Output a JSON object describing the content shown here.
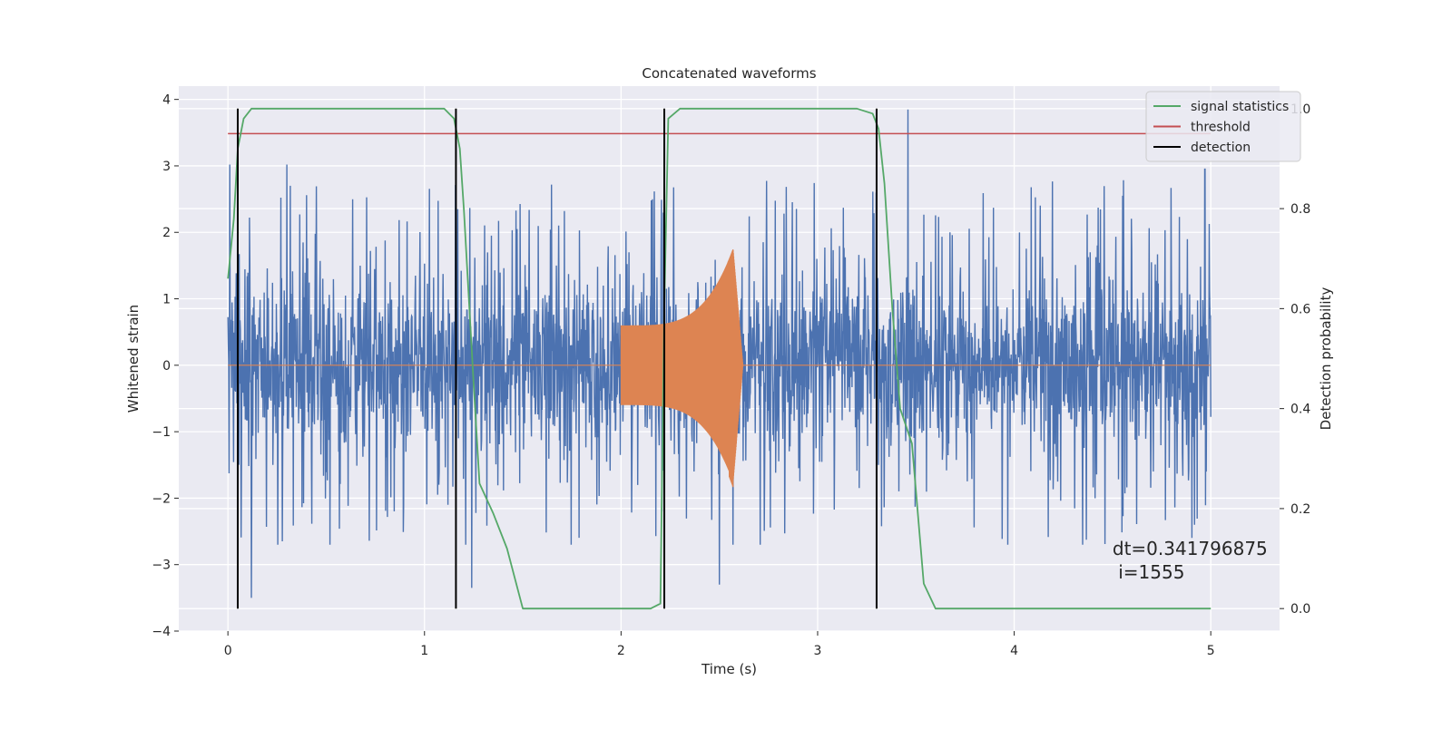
{
  "chart_data": {
    "type": "line",
    "title": "Concatenated waveforms",
    "xlabel": "Time (s)",
    "ylabel": "Whitened strain",
    "y2label": "Detection probability",
    "xlim": [
      -0.25,
      5.35
    ],
    "ylim": [
      -4,
      4.2
    ],
    "y2lim": [
      -0.045,
      1.045
    ],
    "xticks": [
      0,
      1,
      2,
      3,
      4,
      5
    ],
    "xtick_labels": [
      "0",
      "1",
      "2",
      "3",
      "4",
      "5"
    ],
    "yticks": [
      -4,
      -3,
      -2,
      -1,
      0,
      1,
      2,
      3,
      4
    ],
    "ytick_labels": [
      "−4",
      "−3",
      "−2",
      "−1",
      "0",
      "1",
      "2",
      "3",
      "4"
    ],
    "y2ticks": [
      0.0,
      0.2,
      0.4,
      0.6,
      0.8,
      1.0
    ],
    "y2tick_labels": [
      "0.0",
      "0.2",
      "0.4",
      "0.6",
      "0.8",
      "1.0"
    ],
    "grid": true,
    "legend_position": "top-right",
    "series": [
      {
        "name": "whitened strain",
        "axis": "left",
        "color": "#4c72b0",
        "kind": "noise",
        "x_range": [
          0,
          5
        ],
        "typical_envelope": 1.0,
        "peak_values": [
          {
            "x": 0.01,
            "y": 3.02
          },
          {
            "x": 0.3,
            "y": 3.02
          },
          {
            "x": 1.17,
            "y": 2.35
          },
          {
            "x": 1.24,
            "y": -3.35
          },
          {
            "x": 1.16,
            "y": -3.65
          },
          {
            "x": 2.5,
            "y": -3.3
          },
          {
            "x": 3.46,
            "y": 3.85
          },
          {
            "x": 4.97,
            "y": 2.95
          },
          {
            "x": 0.12,
            "y": -3.5
          }
        ]
      },
      {
        "name": "injected waveform",
        "axis": "left",
        "color": "#dd8452",
        "kind": "chirp",
        "start": 2.0,
        "peak_time": 2.57,
        "end": 2.62,
        "amplitude_start": 0.6,
        "amplitude_peak": 1.75,
        "amplitude_min_peak": -1.85
      },
      {
        "name": "signal statistics",
        "axis": "right",
        "color": "#55a868",
        "x": [
          0.0,
          0.03,
          0.05,
          0.08,
          0.12,
          0.2,
          1.0,
          1.1,
          1.15,
          1.18,
          1.2,
          1.25,
          1.28,
          1.35,
          1.42,
          1.5,
          2.15,
          2.2,
          2.22,
          2.24,
          2.3,
          3.2,
          3.28,
          3.31,
          3.34,
          3.38,
          3.42,
          3.48,
          3.54,
          3.6,
          5.0
        ],
        "y": [
          0.66,
          0.78,
          0.92,
          0.98,
          1.0,
          1.0,
          1.0,
          1.0,
          0.98,
          0.92,
          0.8,
          0.45,
          0.25,
          0.19,
          0.12,
          0.0,
          0.0,
          0.01,
          0.6,
          0.98,
          1.0,
          1.0,
          0.99,
          0.96,
          0.85,
          0.6,
          0.4,
          0.33,
          0.05,
          0.0,
          0.0
        ]
      },
      {
        "name": "threshold",
        "axis": "right",
        "color": "#c44e52",
        "x": [
          0,
          5
        ],
        "y": [
          0.95,
          0.95
        ]
      },
      {
        "name": "detection",
        "axis": "right",
        "color": "#000000",
        "kind": "vlines",
        "x": [
          0.05,
          1.16,
          2.22,
          3.3
        ],
        "ymin": 0.0,
        "ymax": 1.0
      }
    ],
    "legend": [
      "signal statistics",
      "threshold",
      "detection"
    ],
    "annotation": {
      "line1": "dt=0.341796875",
      "line2": " i=1555",
      "x": 4.5,
      "y2": 0.1
    }
  },
  "colors": {
    "plot_background": "#eaeaf2",
    "grid": "#ffffff",
    "strain": "#4c72b0",
    "waveform": "#dd8452",
    "statistic": "#55a868",
    "threshold": "#c44e52",
    "detection": "#000000"
  }
}
